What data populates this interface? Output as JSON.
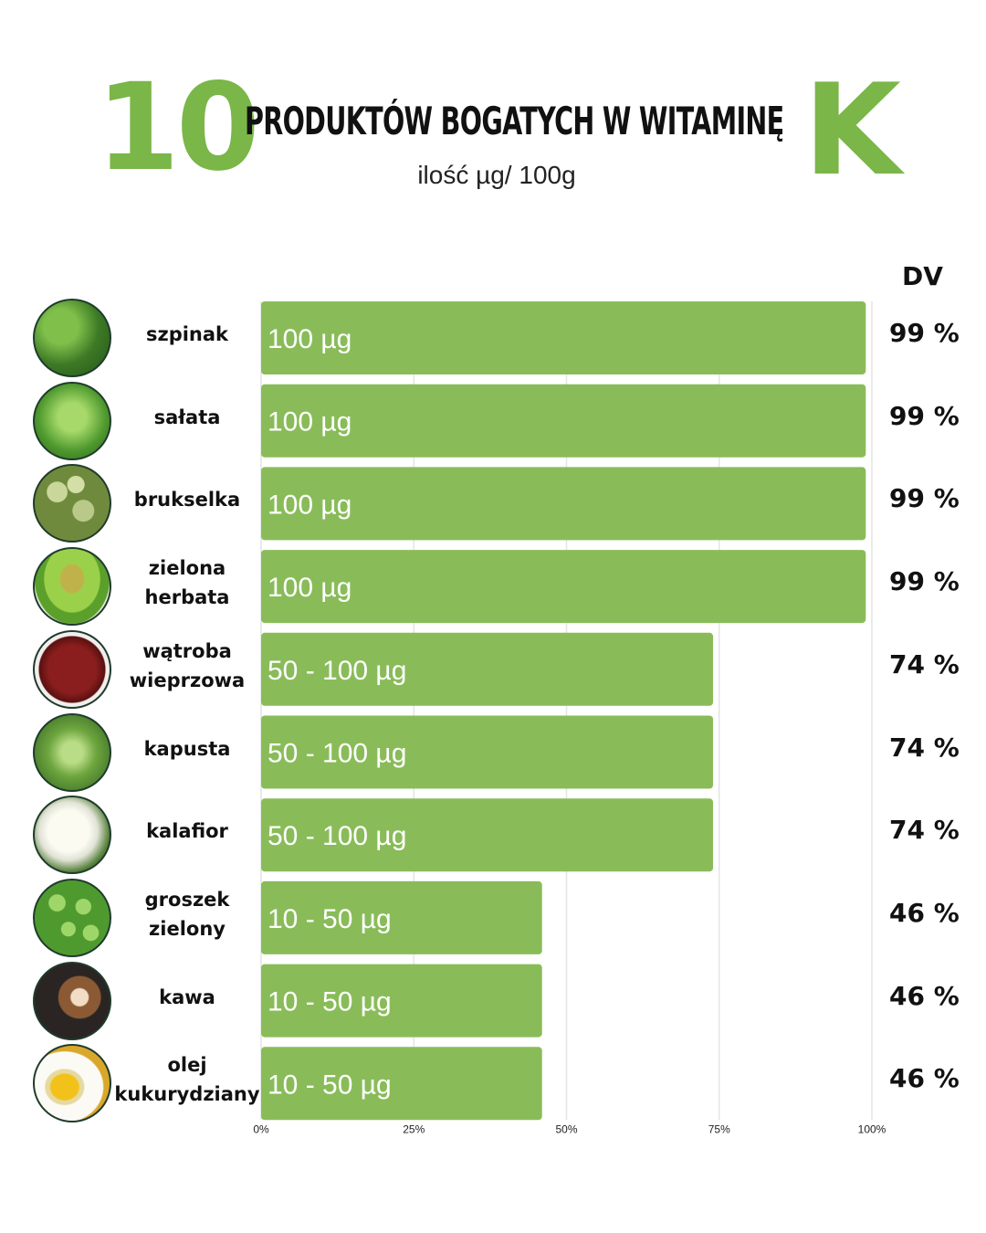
{
  "header": {
    "number": "10",
    "title": "PRODUKTÓW BOGATYCH W WITAMINĘ",
    "letter": "K",
    "subtitle": "ilość µg/ 100g",
    "dv_label": "DV"
  },
  "colors": {
    "accent": "#7ab648",
    "bar": "#89bc59",
    "grid": "#e4e4e4",
    "text": "#111111"
  },
  "chart_data": {
    "type": "bar",
    "orientation": "horizontal",
    "xlim": [
      0,
      100
    ],
    "x_ticks": [
      "0%",
      "25%",
      "50%",
      "75%",
      "100%"
    ],
    "grid": true,
    "categories": [
      "szpinak",
      "sałata",
      "brukselka",
      "zielona herbata",
      "wątroba wieprzowa",
      "kapusta",
      "kalafior",
      "groszek zielony",
      "kawa",
      "olej kukurydziany"
    ],
    "category_lines": [
      [
        "szpinak"
      ],
      [
        "sałata"
      ],
      [
        "brukselka"
      ],
      [
        "zielona",
        "herbata"
      ],
      [
        "wątroba",
        "wieprzowa"
      ],
      [
        "kapusta"
      ],
      [
        "kalafior"
      ],
      [
        "groszek",
        "zielony"
      ],
      [
        "kawa"
      ],
      [
        "olej",
        "kukurydziany"
      ]
    ],
    "values": [
      99,
      99,
      99,
      99,
      74,
      74,
      74,
      46,
      46,
      46
    ],
    "bar_labels": [
      "100 µg",
      "100 µg",
      "100 µg",
      "100 µg",
      "50 - 100 µg",
      "50 - 100 µg",
      "50 - 100 µg",
      "10 - 50 µg",
      "10 - 50 µg",
      "10 - 50 µg"
    ],
    "dv_labels": [
      "99 %",
      "99 %",
      "99 %",
      "99 %",
      "74 %",
      "74 %",
      "74 %",
      "46 %",
      "46 %",
      "46 %"
    ],
    "icons": [
      "spinach-icon",
      "lettuce-icon",
      "brussels-sprouts-icon",
      "green-tea-icon",
      "pork-liver-icon",
      "cabbage-icon",
      "cauliflower-icon",
      "green-peas-icon",
      "coffee-icon",
      "corn-oil-icon"
    ]
  }
}
